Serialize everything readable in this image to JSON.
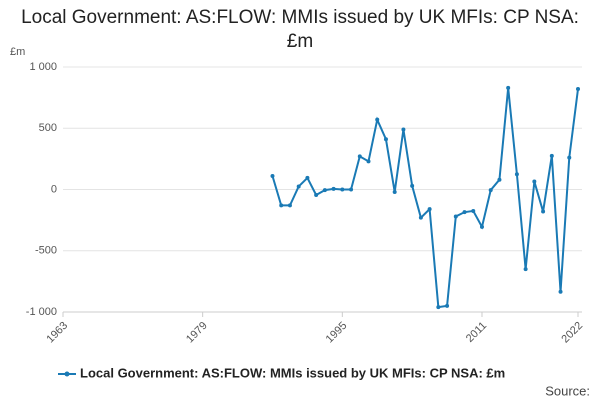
{
  "chart_data": {
    "type": "line",
    "title": "Local Government: AS:FLOW: MMIs issued by UK MFIs: CP NSA: £m",
    "y_axis_label": "£m",
    "source": "Source:",
    "x": [
      1987,
      1988,
      1989,
      1990,
      1991,
      1992,
      1993,
      1994,
      1995,
      1996,
      1997,
      1998,
      1999,
      2000,
      2001,
      2002,
      2003,
      2004,
      2005,
      2006,
      2007,
      2008,
      2009,
      2010,
      2011,
      2012,
      2013,
      2014,
      2015,
      2016,
      2017,
      2018,
      2019,
      2020,
      2021,
      2022
    ],
    "series": [
      {
        "name": "Local Government: AS:FLOW: MMIs issued by UK MFIs: CP NSA: £m",
        "color": "#1a7ab5",
        "values": [
          110,
          -130,
          -130,
          25,
          95,
          -45,
          -5,
          5,
          0,
          0,
          270,
          230,
          570,
          410,
          -20,
          490,
          30,
          -230,
          -160,
          -960,
          -950,
          -220,
          -185,
          -175,
          -305,
          -5,
          80,
          830,
          125,
          -650,
          65,
          -180,
          275,
          -835,
          260,
          820
        ]
      }
    ],
    "xlim": [
      1963,
      2022
    ],
    "xticks": [
      1963,
      1979,
      1995,
      2011,
      2022
    ],
    "ylim": [
      -1000,
      1000
    ],
    "yticks": [
      {
        "value": 1000,
        "label": "1 000"
      },
      500,
      0,
      -500,
      {
        "value": -1000,
        "label": "-1 000"
      }
    ],
    "grid": true
  }
}
